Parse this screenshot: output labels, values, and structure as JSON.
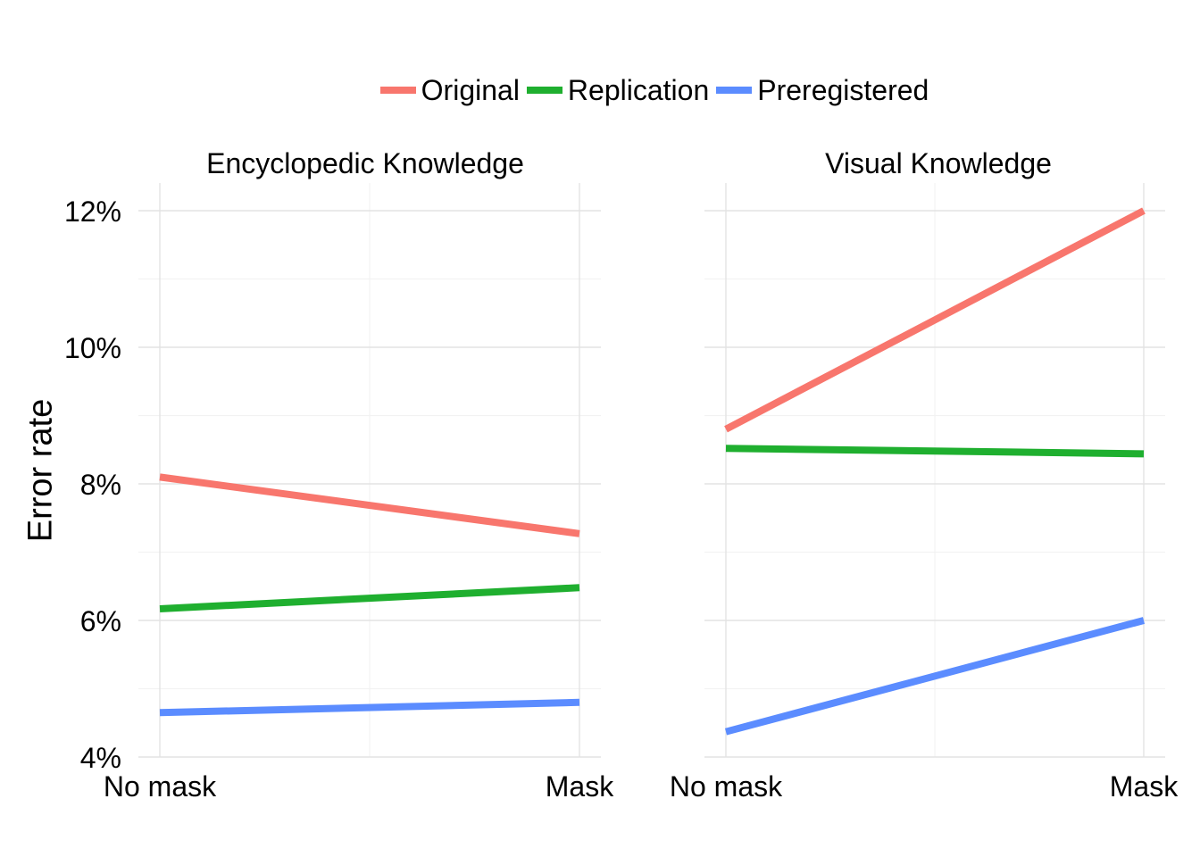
{
  "chart_data": {
    "type": "line",
    "ylabel": "Error rate",
    "xlabel": "",
    "categories": [
      "No mask",
      "Mask"
    ],
    "ylim": [
      4,
      12
    ],
    "yticks": [
      4,
      6,
      8,
      10,
      12
    ],
    "ytick_labels": [
      "4%",
      "6%",
      "8%",
      "10%",
      "12%"
    ],
    "grid": true,
    "legend_position": "top",
    "legend": [
      {
        "name": "Original",
        "color": "#F8766D"
      },
      {
        "name": "Replication",
        "color": "#1FAF2F"
      },
      {
        "name": "Preregistered",
        "color": "#5B8CFF"
      }
    ],
    "panels": [
      {
        "title": "Encyclopedic Knowledge",
        "series": [
          {
            "name": "Original",
            "values": [
              8.1,
              7.27
            ]
          },
          {
            "name": "Replication",
            "values": [
              6.17,
              6.48
            ]
          },
          {
            "name": "Preregistered",
            "values": [
              4.65,
              4.8
            ]
          }
        ]
      },
      {
        "title": "Visual Knowledge",
        "series": [
          {
            "name": "Original",
            "values": [
              8.8,
              12.0
            ]
          },
          {
            "name": "Replication",
            "values": [
              8.52,
              8.44
            ]
          },
          {
            "name": "Preregistered",
            "values": [
              4.37,
              6.0
            ]
          }
        ]
      }
    ]
  }
}
